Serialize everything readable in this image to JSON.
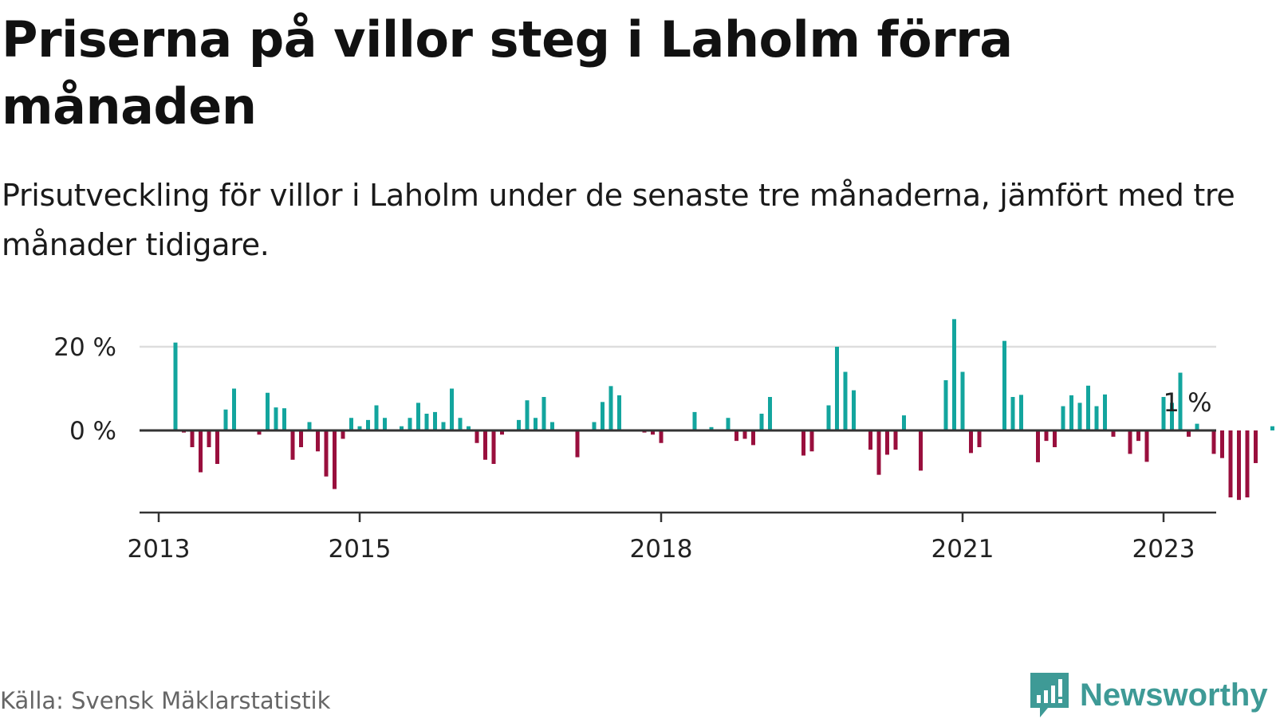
{
  "title": "Priserna på villor steg i Laholm förra månaden",
  "subtitle": "Prisutveckling för villor i Laholm under de senaste tre månaderna, jämfört med tre månader tidigare.",
  "source": "Källa: Svensk Mäklarstatistik",
  "brand": "Newsworthy",
  "colors": {
    "positive": "#13a59e",
    "negative": "#990f3d",
    "grid": "#dddddd",
    "axis": "#333333",
    "brand": "#3e9a96"
  },
  "chart_data": {
    "type": "bar",
    "x_start": "2013-03",
    "x_interval": "month",
    "xticks": [
      "2013",
      "2015",
      "2018",
      "2021",
      "2023"
    ],
    "yticks": [
      "20 %",
      "0 %"
    ],
    "ylim": [
      -20,
      30
    ],
    "grid": true,
    "last_value_label": "1 %",
    "values": [
      21,
      -0.5,
      -4,
      -10,
      -4,
      -8,
      5,
      10,
      0,
      0,
      -1,
      9,
      5.5,
      5.3,
      -7,
      -4,
      2,
      -5,
      -11,
      -14,
      -2,
      3,
      1,
      2.5,
      6,
      3,
      0,
      1,
      3,
      6.6,
      4,
      4.4,
      2,
      10,
      3,
      1,
      -3,
      -7,
      -8,
      -1,
      0,
      2.5,
      7.2,
      3,
      8,
      2,
      0,
      0,
      -6.4,
      0,
      2,
      6.8,
      10.6,
      8.4,
      0,
      0,
      -0.5,
      -1,
      -3,
      0,
      0,
      0,
      4.4,
      0,
      0.8,
      0,
      3,
      -2.5,
      -2,
      -3.5,
      4,
      8,
      0,
      0,
      0,
      -6,
      -5,
      0,
      6,
      20,
      14,
      9.6,
      0,
      -4.6,
      -10.6,
      -5.8,
      -4.6,
      3.6,
      0,
      -9.6,
      0,
      0,
      12,
      26.6,
      14,
      -5.4,
      -4,
      0,
      0,
      21.4,
      8,
      8.5,
      0,
      -7.6,
      -2.5,
      -4,
      5.8,
      8.4,
      6.6,
      10.7,
      5.8,
      8.6,
      -1.5,
      0,
      -5.6,
      -2.5,
      -7.5,
      0,
      8,
      6.6,
      13.8,
      -1.5,
      1.6,
      0,
      -5.6,
      -6.6,
      -16,
      -16.6,
      -16,
      -7.8,
      0,
      1
    ]
  }
}
